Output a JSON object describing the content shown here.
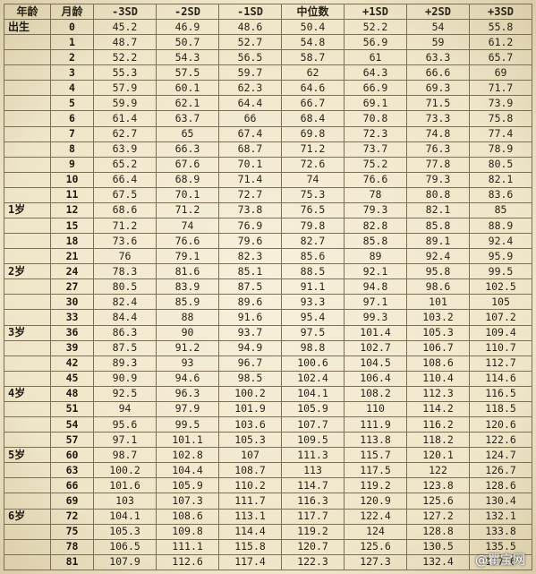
{
  "headers": [
    "年龄",
    "月龄",
    "-3SD",
    "-2SD",
    "-1SD",
    "中位数",
    "+1SD",
    "+2SD",
    "+3SD"
  ],
  "rows": [
    {
      "age": "出生",
      "month": "0",
      "values": [
        "45.2",
        "46.9",
        "48.6",
        "50.4",
        "52.2",
        "54",
        "55.8"
      ]
    },
    {
      "age": "",
      "month": "1",
      "values": [
        "48.7",
        "50.7",
        "52.7",
        "54.8",
        "56.9",
        "59",
        "61.2"
      ]
    },
    {
      "age": "",
      "month": "2",
      "values": [
        "52.2",
        "54.3",
        "56.5",
        "58.7",
        "61",
        "63.3",
        "65.7"
      ]
    },
    {
      "age": "",
      "month": "3",
      "values": [
        "55.3",
        "57.5",
        "59.7",
        "62",
        "64.3",
        "66.6",
        "69"
      ]
    },
    {
      "age": "",
      "month": "4",
      "values": [
        "57.9",
        "60.1",
        "62.3",
        "64.6",
        "66.9",
        "69.3",
        "71.7"
      ]
    },
    {
      "age": "",
      "month": "5",
      "values": [
        "59.9",
        "62.1",
        "64.4",
        "66.7",
        "69.1",
        "71.5",
        "73.9"
      ]
    },
    {
      "age": "",
      "month": "6",
      "values": [
        "61.4",
        "63.7",
        "66",
        "68.4",
        "70.8",
        "73.3",
        "75.8"
      ]
    },
    {
      "age": "",
      "month": "7",
      "values": [
        "62.7",
        "65",
        "67.4",
        "69.8",
        "72.3",
        "74.8",
        "77.4"
      ]
    },
    {
      "age": "",
      "month": "8",
      "values": [
        "63.9",
        "66.3",
        "68.7",
        "71.2",
        "73.7",
        "76.3",
        "78.9"
      ]
    },
    {
      "age": "",
      "month": "9",
      "values": [
        "65.2",
        "67.6",
        "70.1",
        "72.6",
        "75.2",
        "77.8",
        "80.5"
      ]
    },
    {
      "age": "",
      "month": "10",
      "values": [
        "66.4",
        "68.9",
        "71.4",
        "74",
        "76.6",
        "79.3",
        "82.1"
      ]
    },
    {
      "age": "",
      "month": "11",
      "values": [
        "67.5",
        "70.1",
        "72.7",
        "75.3",
        "78",
        "80.8",
        "83.6"
      ]
    },
    {
      "age": "1岁",
      "month": "12",
      "values": [
        "68.6",
        "71.2",
        "73.8",
        "76.5",
        "79.3",
        "82.1",
        "85"
      ]
    },
    {
      "age": "",
      "month": "15",
      "values": [
        "71.2",
        "74",
        "76.9",
        "79.8",
        "82.8",
        "85.8",
        "88.9"
      ]
    },
    {
      "age": "",
      "month": "18",
      "values": [
        "73.6",
        "76.6",
        "79.6",
        "82.7",
        "85.8",
        "89.1",
        "92.4"
      ]
    },
    {
      "age": "",
      "month": "21",
      "values": [
        "76",
        "79.1",
        "82.3",
        "85.6",
        "89",
        "92.4",
        "95.9"
      ]
    },
    {
      "age": "2岁",
      "month": "24",
      "values": [
        "78.3",
        "81.6",
        "85.1",
        "88.5",
        "92.1",
        "95.8",
        "99.5"
      ]
    },
    {
      "age": "",
      "month": "27",
      "values": [
        "80.5",
        "83.9",
        "87.5",
        "91.1",
        "94.8",
        "98.6",
        "102.5"
      ]
    },
    {
      "age": "",
      "month": "30",
      "values": [
        "82.4",
        "85.9",
        "89.6",
        "93.3",
        "97.1",
        "101",
        "105"
      ]
    },
    {
      "age": "",
      "month": "33",
      "values": [
        "84.4",
        "88",
        "91.6",
        "95.4",
        "99.3",
        "103.2",
        "107.2"
      ]
    },
    {
      "age": "3岁",
      "month": "36",
      "values": [
        "86.3",
        "90",
        "93.7",
        "97.5",
        "101.4",
        "105.3",
        "109.4"
      ]
    },
    {
      "age": "",
      "month": "39",
      "values": [
        "87.5",
        "91.2",
        "94.9",
        "98.8",
        "102.7",
        "106.7",
        "110.7"
      ]
    },
    {
      "age": "",
      "month": "42",
      "values": [
        "89.3",
        "93",
        "96.7",
        "100.6",
        "104.5",
        "108.6",
        "112.7"
      ]
    },
    {
      "age": "",
      "month": "45",
      "values": [
        "90.9",
        "94.6",
        "98.5",
        "102.4",
        "106.4",
        "110.4",
        "114.6"
      ]
    },
    {
      "age": "4岁",
      "month": "48",
      "values": [
        "92.5",
        "96.3",
        "100.2",
        "104.1",
        "108.2",
        "112.3",
        "116.5"
      ]
    },
    {
      "age": "",
      "month": "51",
      "values": [
        "94",
        "97.9",
        "101.9",
        "105.9",
        "110",
        "114.2",
        "118.5"
      ]
    },
    {
      "age": "",
      "month": "54",
      "values": [
        "95.6",
        "99.5",
        "103.6",
        "107.7",
        "111.9",
        "116.2",
        "120.6"
      ]
    },
    {
      "age": "",
      "month": "57",
      "values": [
        "97.1",
        "101.1",
        "105.3",
        "109.5",
        "113.8",
        "118.2",
        "122.6"
      ]
    },
    {
      "age": "5岁",
      "month": "60",
      "values": [
        "98.7",
        "102.8",
        "107",
        "111.3",
        "115.7",
        "120.1",
        "124.7"
      ]
    },
    {
      "age": "",
      "month": "63",
      "values": [
        "100.2",
        "104.4",
        "108.7",
        "113",
        "117.5",
        "122",
        "126.7"
      ]
    },
    {
      "age": "",
      "month": "66",
      "values": [
        "101.6",
        "105.9",
        "110.2",
        "114.7",
        "119.2",
        "123.8",
        "128.6"
      ]
    },
    {
      "age": "",
      "month": "69",
      "values": [
        "103",
        "107.3",
        "111.7",
        "116.3",
        "120.9",
        "125.6",
        "130.4"
      ]
    },
    {
      "age": "6岁",
      "month": "72",
      "values": [
        "104.1",
        "108.6",
        "113.1",
        "117.7",
        "122.4",
        "127.2",
        "132.1"
      ]
    },
    {
      "age": "",
      "month": "75",
      "values": [
        "105.3",
        "109.8",
        "114.4",
        "119.2",
        "124",
        "128.8",
        "133.8"
      ]
    },
    {
      "age": "",
      "month": "78",
      "values": [
        "106.5",
        "111.1",
        "115.8",
        "120.7",
        "125.6",
        "130.5",
        "135.5"
      ]
    },
    {
      "age": "",
      "month": "81",
      "values": [
        "107.9",
        "112.6",
        "117.4",
        "122.3",
        "127.3",
        "132.4",
        "137.6"
      ]
    }
  ],
  "watermark": "@瞿宝网"
}
